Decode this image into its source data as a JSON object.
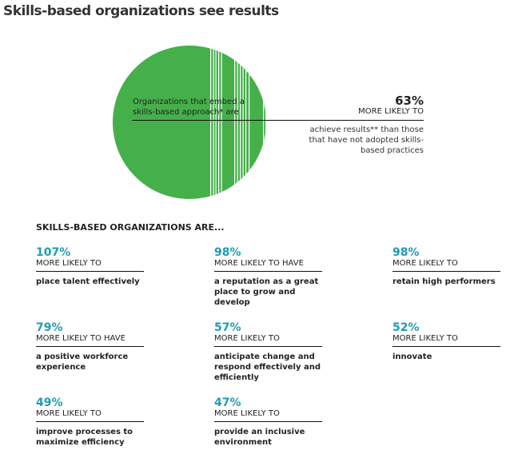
{
  "title": "Skills-based organizations see results",
  "colors": {
    "green": "#45b04a",
    "teal": "#1d9db3"
  },
  "hero": {
    "left_text": "Organizations that embed a skills-based approach* are",
    "percent": "63%",
    "more_likely": "MORE LIKELY TO",
    "description": "achieve results** than those that have not adopted skills-based practices"
  },
  "subheading": "SKILLS-BASED ORGANIZATIONS ARE...",
  "stats": [
    {
      "percent": "107%",
      "label": "MORE LIKELY TO",
      "desc": "place talent effectively"
    },
    {
      "percent": "98%",
      "label": "MORE LIKELY TO HAVE",
      "desc": "a reputation as a great place to grow and develop"
    },
    {
      "percent": "98%",
      "label": "MORE LIKELY TO",
      "desc": "retain high performers"
    },
    {
      "percent": "79%",
      "label": "MORE LIKELY TO HAVE",
      "desc": "a positive workforce experience"
    },
    {
      "percent": "57%",
      "label": "MORE LIKELY TO",
      "desc": "anticipate change and respond effectively and efficiently"
    },
    {
      "percent": "52%",
      "label": "MORE LIKELY TO",
      "desc": "innovate"
    },
    {
      "percent": "49%",
      "label": "MORE LIKELY TO",
      "desc": "improve processes to maximize efficiency"
    },
    {
      "percent": "47%",
      "label": "MORE LIKELY TO",
      "desc": "provide an inclusive environment"
    }
  ]
}
